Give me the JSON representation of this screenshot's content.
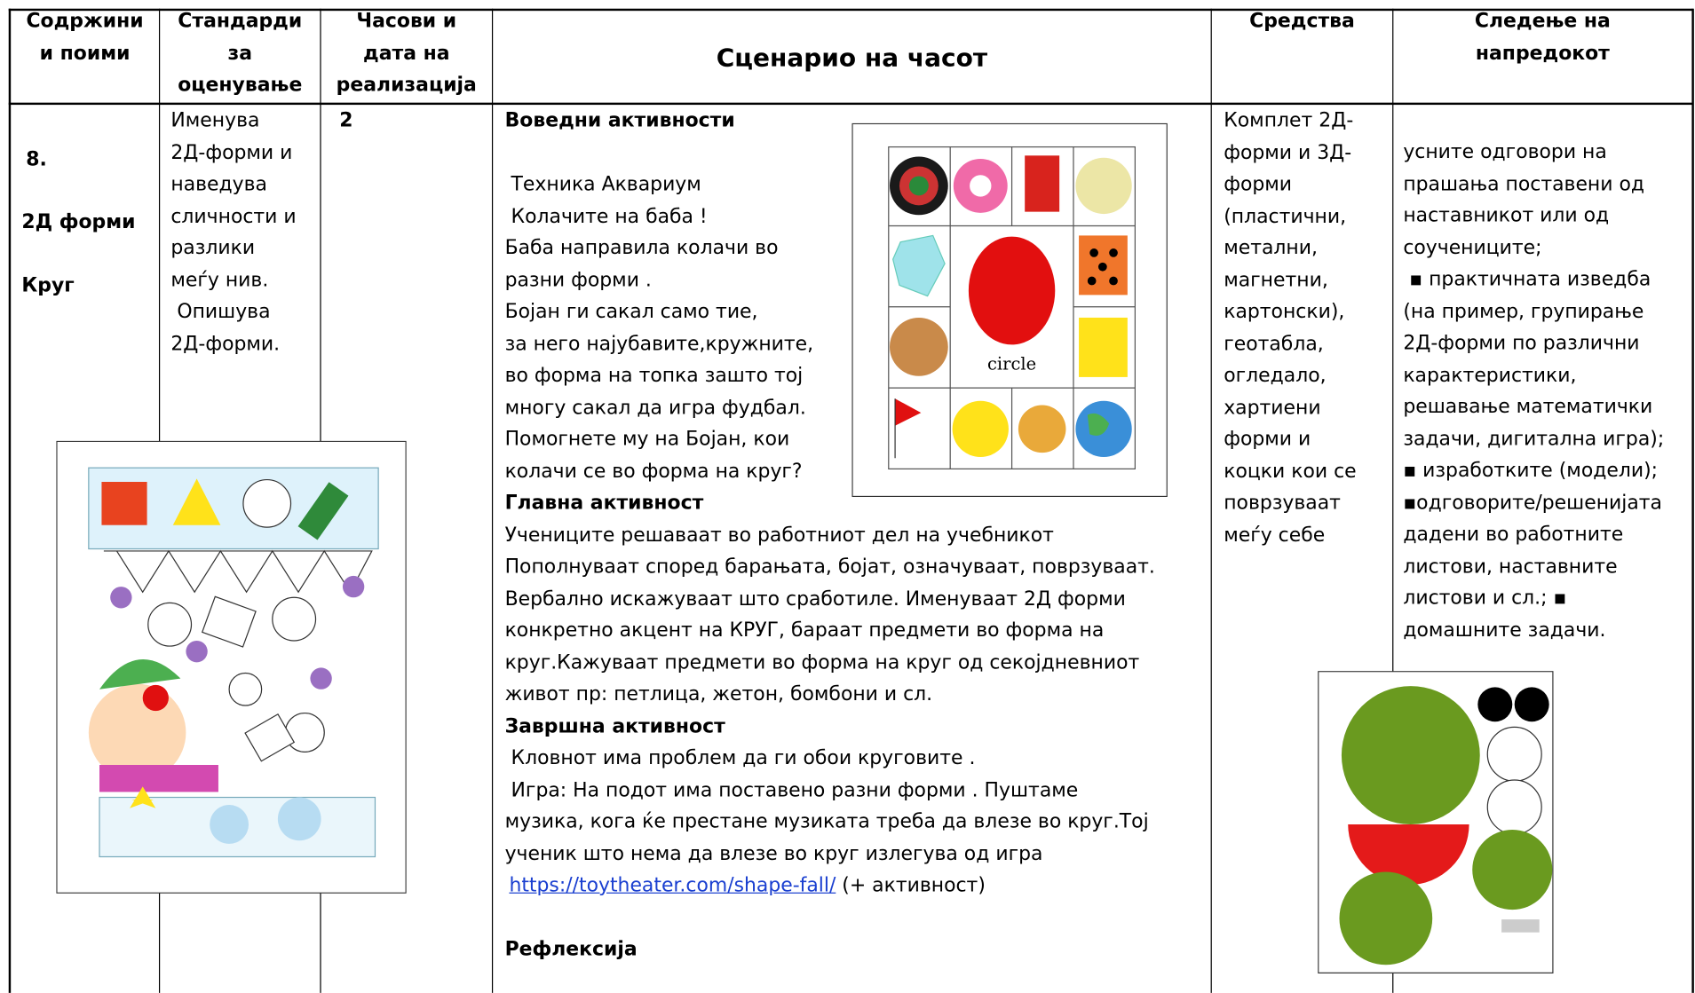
{
  "table": {
    "header": {
      "content": [
        "Содржини",
        "и поими"
      ],
      "standards": [
        "Стандарди",
        "за",
        "оценување"
      ],
      "hours": [
        "Часови и",
        "дата на",
        "реализација"
      ],
      "scenario": "Сценарио на часот",
      "resources": [
        "Средства"
      ],
      "progress": [
        "Следење на",
        "напредокот"
      ]
    },
    "row": {
      "content": {
        "number": "8.",
        "topic": "2Д форми",
        "subtopic": "Круг"
      },
      "standards": [
        "Именува",
        "2Д-форми и",
        "наведува",
        "сличности и",
        "разлики",
        "меѓу нив.",
        " Опишува",
        "2Д-форми."
      ],
      "hours": "2",
      "scenario": {
        "intro_heading": "Воведни активности",
        "intro_lines": [
          " Техника Аквариум",
          " Колачите на баба !",
          "Баба направила колачи во",
          "разни форми .",
          "Бојан ги сакал само тие,",
          "за него најубавите,кружните,",
          "во форма на топка зашто тој",
          "многу сакал да игра фудбал.",
          "Помогнете му на Бојан, кои",
          "колачи се во форма на круг?"
        ],
        "main_heading": "Главна активност",
        "main_lines": [
          "Учениците решаваат во работниот дел на учебникот",
          "Пополнуваат според барањата, бојат, означуваат, поврзуваат.",
          "Вербално искажуваат што сработиле. Именуваат 2Д форми",
          "конкретно акцент на КРУГ, бараат предмети во форма на",
          "круг.Кажуваат предмети во форма на круг од секојдневниот",
          "живот пр: петлица, жетон, бомбони и сл."
        ],
        "final_heading": "Завршна активност",
        "final_lines": [
          " Кловнот има проблем да ги обои круговите .",
          " Игра: На подот има поставено разни форми . Пуштаме",
          "музика, кога ќе престане музиката треба да влезе во круг.Тој",
          "ученик што нема да влезе во круг излегува од игра"
        ],
        "link": "https://toytheater.com/shape-fall/",
        "link_suffix": " (+ активност)",
        "reflection": "Рефлексија"
      },
      "resources": [
        "Комплет 2Д-",
        "форми и 3Д-",
        "форми",
        "(пластични,",
        "метални,",
        "магнетни,",
        "картонски),",
        "геотабла,",
        "огледало,",
        "хартиени",
        "форми и",
        "коцки кои се",
        "поврзуваат",
        "меѓу себе"
      ],
      "progress": [
        "усните одговори на",
        "прашања поставени од",
        "наставникот или од",
        "соучениците;",
        " ▪ практичната изведба",
        "(на пример, групирање",
        "2Д-форми по различни",
        "карактеристики,",
        "решавање математички",
        "задачи, дигитална игра);",
        "▪ изработките (модели);",
        "▪одговорите/решенијата",
        "дадени во работните",
        "листови, наставните",
        "листови и сл.; ▪",
        "домашните задачи."
      ]
    }
  },
  "images": {
    "circle_label": "circle"
  }
}
